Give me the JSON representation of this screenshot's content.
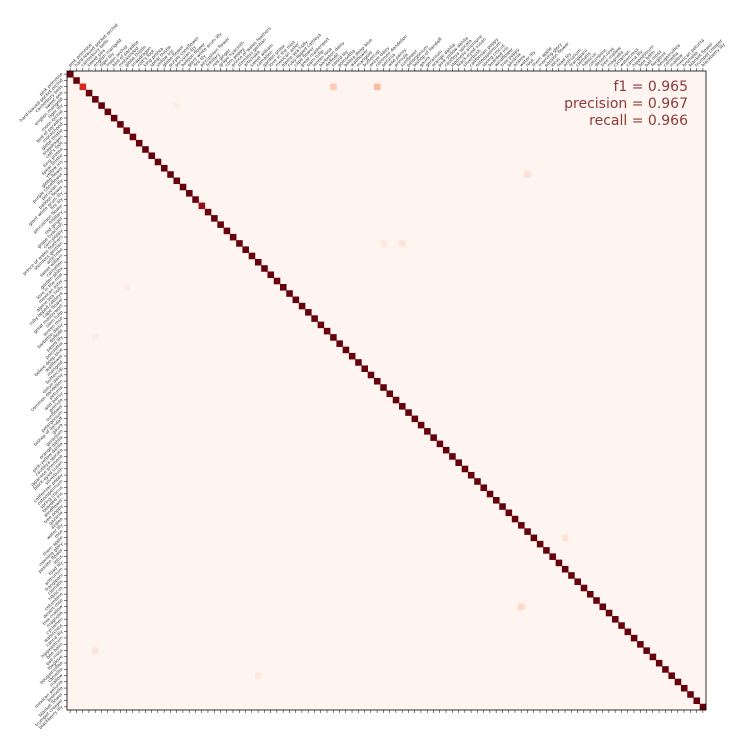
{
  "chart_data": {
    "type": "heatmap",
    "title": "",
    "xlabel": "",
    "ylabel": "",
    "n_classes": 102,
    "colormap": "Reds",
    "value_range": [
      0,
      1
    ],
    "grid": false,
    "legend": "none",
    "metrics": {
      "f1": "f1 = 0.965",
      "precision": "precision = 0.967",
      "recall": "recall = 0.966"
    },
    "x_tick_labels": [
      "pink primrose",
      "hard-leaved pocket orchid",
      "canterbury bells",
      "sweet pea",
      "english marigold",
      "tiger lily",
      "moon orchid",
      "bird of paradise",
      "monkshood",
      "globe thistle",
      "snapdragon",
      "colt's foot",
      "king protea",
      "spear thistle",
      "yellow iris",
      "globe-flower",
      "purple coneflower",
      "peruvian lily",
      "balloon flower",
      "giant white arum lily",
      "fire lily",
      "pincushion flower",
      "fritillary",
      "red ginger",
      "grape hyacinth",
      "corn poppy",
      "prince of wales feathers",
      "stemless gentian",
      "artichoke",
      "sweet william",
      "carnation",
      "garden phlox",
      "love in the mist",
      "mexican aster",
      "alpine sea holly",
      "ruby-lipped cattleya",
      "cape flower",
      "great masterwort",
      "siam tulip",
      "lenten rose",
      "barbeton daisy",
      "daffodil",
      "sword lily",
      "poinsettia",
      "bolero deep blue",
      "wallflower",
      "marigold",
      "buttercup",
      "oxeye daisy",
      "common dandelion",
      "petunia",
      "wild pansy",
      "primula",
      "sunflower",
      "pelargonium",
      "bishop of llandaff",
      "gaura",
      "geranium",
      "orange dahlia",
      "pink-yellow dahlia",
      "cautleya spicata",
      "japanese anemone",
      "black-eyed susan",
      "silverbush",
      "californian poppy",
      "osteospermum",
      "spring crocus",
      "bearded iris",
      "windflower",
      "tree poppy",
      "gazania",
      "azalea",
      "water lily",
      "rose",
      "thorn apple",
      "morning glory",
      "passion flower",
      "lotus",
      "toad lily",
      "anthurium",
      "frangipani",
      "clematis",
      "hibiscus",
      "columbine",
      "desert-rose",
      "tree mallow",
      "magnolia",
      "cyclamen",
      "watercress",
      "canna lily",
      "hippeastrum",
      "bee balm",
      "ball moss",
      "foxglove",
      "bougainvillea",
      "camellia",
      "mallow",
      "mexican petunia",
      "bromelia",
      "blanket flower",
      "trumpet creeper",
      "blackberry lily"
    ],
    "y_tick_labels": [
      "pink primrose",
      "hard-leaved pocket orchid",
      "canterbury bells",
      "sweet pea",
      "english marigold",
      "tiger lily",
      "moon orchid",
      "bird of paradise",
      "monkshood",
      "globe thistle",
      "snapdragon",
      "colt's foot",
      "king protea",
      "spear thistle",
      "yellow iris",
      "globe-flower",
      "purple coneflower",
      "peruvian lily",
      "balloon flower",
      "giant white arum lily",
      "fire lily",
      "pincushion flower",
      "fritillary",
      "red ginger",
      "grape hyacinth",
      "corn poppy",
      "prince of wales feathers",
      "stemless gentian",
      "artichoke",
      "sweet william",
      "carnation",
      "garden phlox",
      "love in the mist",
      "mexican aster",
      "alpine sea holly",
      "ruby-lipped cattleya",
      "cape flower",
      "great masterwort",
      "siam tulip",
      "lenten rose",
      "barbeton daisy",
      "daffodil",
      "sword lily",
      "poinsettia",
      "bolero deep blue",
      "wallflower",
      "marigold",
      "buttercup",
      "oxeye daisy",
      "common dandelion",
      "petunia",
      "wild pansy",
      "primula",
      "sunflower",
      "pelargonium",
      "bishop of llandaff",
      "gaura",
      "geranium",
      "orange dahlia",
      "pink-yellow dahlia",
      "cautleya spicata",
      "japanese anemone",
      "black-eyed susan",
      "silverbush",
      "californian poppy",
      "osteospermum",
      "spring crocus",
      "bearded iris",
      "windflower",
      "tree poppy",
      "gazania",
      "azalea",
      "water lily",
      "rose",
      "thorn apple",
      "morning glory",
      "passion flower",
      "lotus",
      "toad lily",
      "anthurium",
      "frangipani",
      "clematis",
      "hibiscus",
      "columbine",
      "desert-rose",
      "tree mallow",
      "magnolia",
      "cyclamen",
      "watercress",
      "canna lily",
      "hippeastrum",
      "bee balm",
      "ball moss",
      "foxglove",
      "bougainvillea",
      "camellia",
      "mallow",
      "mexican petunia",
      "bromelia",
      "blanket flower",
      "trumpet creeper",
      "blackberry lily"
    ],
    "diagonal_values": [
      1.0,
      1.0,
      0.7,
      1.0,
      1.0,
      1.0,
      1.0,
      1.0,
      1.0,
      1.0,
      1.0,
      1.0,
      1.0,
      1.0,
      1.0,
      1.0,
      1.0,
      1.0,
      1.0,
      1.0,
      1.0,
      0.9,
      1.0,
      1.0,
      1.0,
      1.0,
      1.0,
      1.0,
      1.0,
      1.0,
      1.0,
      1.0,
      1.0,
      1.0,
      1.0,
      1.0,
      1.0,
      1.0,
      1.0,
      1.0,
      1.0,
      1.0,
      1.0,
      1.0,
      1.0,
      1.0,
      1.0,
      1.0,
      1.0,
      1.0,
      1.0,
      1.0,
      1.0,
      1.0,
      1.0,
      1.0,
      1.0,
      1.0,
      1.0,
      1.0,
      1.0,
      1.0,
      1.0,
      1.0,
      1.0,
      1.0,
      1.0,
      1.0,
      1.0,
      1.0,
      1.0,
      1.0,
      1.0,
      1.0,
      1.0,
      1.0,
      1.0,
      1.0,
      1.0,
      1.0,
      1.0,
      1.0,
      1.0,
      1.0,
      1.0,
      1.0,
      1.0,
      1.0,
      1.0,
      1.0,
      1.0,
      1.0,
      1.0,
      1.0,
      1.0,
      1.0,
      1.0,
      1.0,
      1.0,
      1.0,
      1.0,
      1.0
    ],
    "off_diagonal_cells": [
      {
        "row": 2,
        "col": 42,
        "value": 0.2
      },
      {
        "row": 2,
        "col": 49,
        "value": 0.25
      },
      {
        "row": 16,
        "col": 73,
        "value": 0.12
      },
      {
        "row": 27,
        "col": 53,
        "value": 0.1
      },
      {
        "row": 27,
        "col": 50,
        "value": 0.08
      },
      {
        "row": 92,
        "col": 4,
        "value": 0.1
      },
      {
        "row": 96,
        "col": 30,
        "value": 0.08
      },
      {
        "row": 85,
        "col": 72,
        "value": 0.15
      },
      {
        "row": 74,
        "col": 79,
        "value": 0.12
      },
      {
        "row": 5,
        "col": 17,
        "value": 0.05
      },
      {
        "row": 34,
        "col": 9,
        "value": 0.06
      },
      {
        "row": 42,
        "col": 4,
        "value": 0.05
      }
    ]
  }
}
